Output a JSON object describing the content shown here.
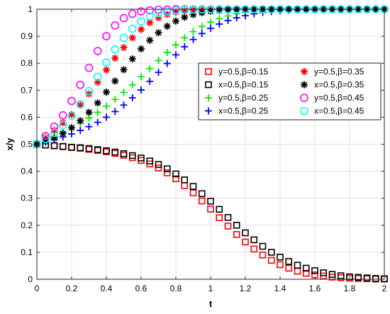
{
  "chart_data": {
    "type": "scatter",
    "xlabel": "t",
    "ylabel": "x/y",
    "xlim": [
      0,
      2
    ],
    "ylim": [
      0,
      1
    ],
    "xticks": [
      "0",
      "0.2",
      "0.4",
      "0.6",
      "0.8",
      "1",
      "1.2",
      "1.4",
      "1.6",
      "1.8",
      "2"
    ],
    "yticks": [
      "0",
      "0.1",
      "0.2",
      "0.3",
      "0.4",
      "0.5",
      "0.6",
      "0.7",
      "0.8",
      "0.9",
      "1"
    ],
    "grid": true,
    "legend_placement": "center-right",
    "t": [
      0,
      0.05,
      0.1,
      0.15,
      0.2,
      0.25,
      0.3,
      0.35,
      0.4,
      0.45,
      0.5,
      0.55,
      0.6,
      0.65,
      0.7,
      0.75,
      0.8,
      0.85,
      0.9,
      0.95,
      1,
      1.05,
      1.1,
      1.15,
      1.2,
      1.25,
      1.3,
      1.35,
      1.4,
      1.45,
      1.5,
      1.55,
      1.6,
      1.65,
      1.7,
      1.75,
      1.8,
      1.85,
      1.9,
      1.95,
      2
    ],
    "series": [
      {
        "name": "y=0.5,β=0.15",
        "color": "#ff0000",
        "marker": "square",
        "values": [
          0.5,
          0.497,
          0.494,
          0.491,
          0.488,
          0.485,
          0.481,
          0.477,
          0.472,
          0.466,
          0.459,
          0.45,
          0.44,
          0.427,
          0.412,
          0.394,
          0.372,
          0.347,
          0.32,
          0.29,
          0.26,
          0.228,
          0.197,
          0.166,
          0.138,
          0.112,
          0.09,
          0.07,
          0.054,
          0.041,
          0.03,
          0.022,
          0.016,
          0.012,
          0.008,
          0.006,
          0.004,
          0.003,
          0.002,
          0.001,
          0.001
        ]
      },
      {
        "name": "x=0.5,β=0.15",
        "color": "#000000",
        "marker": "square",
        "values": [
          0.5,
          0.497,
          0.495,
          0.492,
          0.489,
          0.487,
          0.484,
          0.48,
          0.476,
          0.471,
          0.465,
          0.458,
          0.449,
          0.438,
          0.425,
          0.409,
          0.39,
          0.368,
          0.344,
          0.317,
          0.289,
          0.259,
          0.229,
          0.2,
          0.172,
          0.146,
          0.122,
          0.1,
          0.082,
          0.066,
          0.052,
          0.041,
          0.032,
          0.024,
          0.018,
          0.013,
          0.009,
          0.007,
          0.005,
          0.003,
          0.002
        ]
      },
      {
        "name": "y=0.5,β=0.25",
        "color": "#00ee00",
        "marker": "plus",
        "values": [
          0.5,
          0.514,
          0.528,
          0.543,
          0.56,
          0.578,
          0.597,
          0.618,
          0.641,
          0.666,
          0.692,
          0.72,
          0.75,
          0.78,
          0.81,
          0.84,
          0.868,
          0.894,
          0.917,
          0.936,
          0.952,
          0.965,
          0.975,
          0.983,
          0.988,
          0.992,
          0.995,
          0.997,
          0.998,
          0.999,
          0.999,
          1,
          1,
          1,
          1,
          1,
          1,
          1,
          1,
          1,
          1
        ]
      },
      {
        "name": "x=0.5,β=0.25",
        "color": "#0000ff",
        "marker": "plus",
        "values": [
          0.5,
          0.508,
          0.517,
          0.527,
          0.538,
          0.551,
          0.565,
          0.581,
          0.6,
          0.621,
          0.645,
          0.672,
          0.701,
          0.733,
          0.766,
          0.799,
          0.831,
          0.861,
          0.888,
          0.91,
          0.929,
          0.945,
          0.958,
          0.968,
          0.976,
          0.983,
          0.988,
          0.991,
          0.994,
          0.996,
          0.997,
          0.998,
          0.999,
          0.999,
          1,
          1,
          1,
          1,
          1,
          1,
          1
        ]
      },
      {
        "name": "y=0.5,β=0.35",
        "color": "#ff0000",
        "marker": "asterisk",
        "values": [
          0.5,
          0.525,
          0.551,
          0.579,
          0.61,
          0.645,
          0.686,
          0.73,
          0.775,
          0.819,
          0.858,
          0.894,
          0.925,
          0.95,
          0.968,
          0.981,
          0.989,
          0.994,
          0.997,
          0.998,
          0.999,
          1,
          1,
          1,
          1,
          1,
          1,
          1,
          1,
          1,
          1,
          1,
          1,
          1,
          1,
          1,
          1,
          1,
          1,
          1,
          1
        ]
      },
      {
        "name": "x=0.5,β=0.35",
        "color": "#000000",
        "marker": "asterisk",
        "values": [
          0.5,
          0.51,
          0.523,
          0.54,
          0.561,
          0.587,
          0.618,
          0.653,
          0.693,
          0.734,
          0.776,
          0.816,
          0.853,
          0.885,
          0.913,
          0.937,
          0.956,
          0.97,
          0.98,
          0.987,
          0.992,
          0.995,
          0.997,
          0.998,
          0.999,
          1,
          1,
          1,
          1,
          1,
          1,
          1,
          1,
          1,
          1,
          1,
          1,
          1,
          1,
          1,
          1
        ]
      },
      {
        "name": "y=0.5,β=0.45",
        "color": "#ff00ff",
        "marker": "circle",
        "values": [
          0.5,
          0.53,
          0.565,
          0.607,
          0.66,
          0.72,
          0.783,
          0.845,
          0.9,
          0.94,
          0.967,
          0.983,
          0.992,
          0.996,
          0.998,
          0.999,
          1,
          1,
          1,
          1,
          1,
          1,
          1,
          1,
          1,
          1,
          1,
          1,
          1,
          1,
          1,
          1,
          1,
          1,
          1,
          1,
          1,
          1,
          1,
          1,
          1
        ]
      },
      {
        "name": "x=0.5,β=0.45",
        "color": "#00ffff",
        "marker": "circle",
        "values": [
          0.5,
          0.519,
          0.542,
          0.57,
          0.605,
          0.648,
          0.697,
          0.75,
          0.803,
          0.851,
          0.894,
          0.928,
          0.955,
          0.973,
          0.985,
          0.992,
          0.996,
          0.998,
          0.999,
          1,
          1,
          1,
          1,
          1,
          1,
          1,
          1,
          1,
          1,
          1,
          1,
          1,
          1,
          1,
          1,
          1,
          1,
          1,
          1,
          1,
          1
        ]
      }
    ]
  }
}
